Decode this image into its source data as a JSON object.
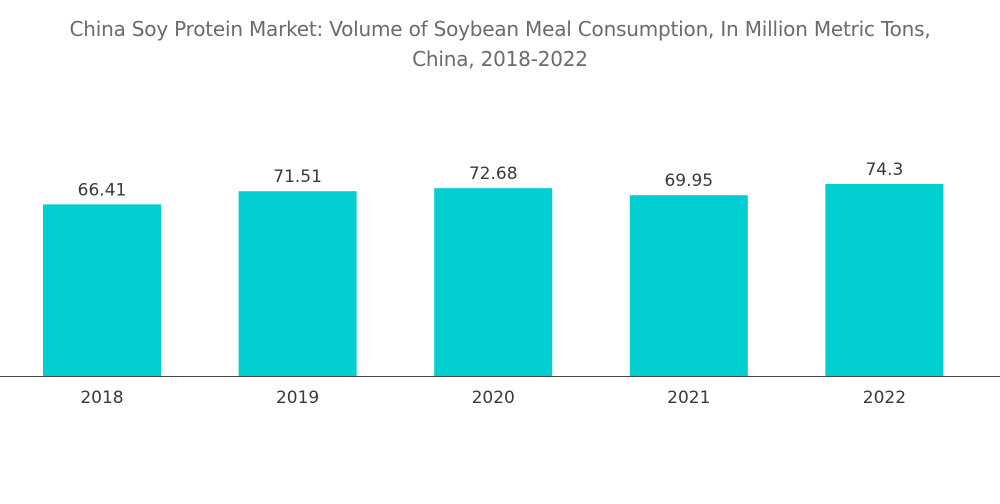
{
  "title_line1": "China Soy Protein Market: Volume of Soybean Meal Consumption, In Million Metric Tons,",
  "title_line2": "China, 2018-2022",
  "colors": {
    "bar": "#00CED1",
    "axis": "#444444",
    "text": "#3a3a3a",
    "title": "#6b6b6b"
  },
  "chart_data": {
    "type": "bar",
    "title": "China Soy Protein Market: Volume of Soybean Meal Consumption, In Million Metric Tons, China, 2018-2022",
    "categories": [
      "2018",
      "2019",
      "2020",
      "2021",
      "2022"
    ],
    "values": [
      66.41,
      71.51,
      72.68,
      69.95,
      74.3
    ],
    "value_labels": [
      "66.41",
      "71.51",
      "72.68",
      "69.95",
      "74.3"
    ],
    "xlabel": "",
    "ylabel": "",
    "ylim": [
      0,
      74.3
    ],
    "grid": false,
    "legend": "none",
    "data_labels": true
  }
}
